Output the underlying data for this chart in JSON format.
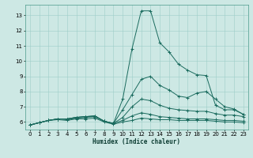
{
  "xlabel": "Humidex (Indice chaleur)",
  "bg_color": "#cde8e4",
  "line_color": "#1a6b5e",
  "xlim": [
    -0.5,
    23.5
  ],
  "ylim": [
    5.5,
    13.7
  ],
  "xticks": [
    0,
    1,
    2,
    3,
    4,
    5,
    6,
    7,
    8,
    9,
    10,
    11,
    12,
    13,
    14,
    15,
    16,
    17,
    18,
    19,
    20,
    21,
    22,
    23
  ],
  "yticks": [
    6,
    7,
    8,
    9,
    10,
    11,
    12,
    13
  ],
  "lines": [
    {
      "x": [
        0,
        1,
        2,
        3,
        4,
        5,
        6,
        7,
        8,
        9,
        10,
        11,
        12,
        13,
        14,
        15,
        16,
        17,
        18,
        19,
        20,
        21,
        22,
        23
      ],
      "y": [
        5.8,
        5.95,
        6.1,
        6.2,
        6.2,
        6.3,
        6.35,
        6.4,
        6.05,
        5.9,
        7.5,
        10.8,
        13.3,
        13.3,
        11.2,
        10.6,
        9.8,
        9.4,
        9.1,
        9.05,
        7.1,
        6.8,
        6.8,
        6.5
      ]
    },
    {
      "x": [
        0,
        1,
        2,
        3,
        4,
        5,
        6,
        7,
        8,
        9,
        10,
        11,
        12,
        13,
        14,
        15,
        16,
        17,
        18,
        19,
        20,
        21,
        22,
        23
      ],
      "y": [
        5.8,
        5.95,
        6.1,
        6.2,
        6.2,
        6.3,
        6.35,
        6.4,
        6.05,
        5.9,
        6.8,
        7.8,
        8.8,
        9.0,
        8.4,
        8.1,
        7.7,
        7.6,
        7.9,
        8.0,
        7.5,
        7.0,
        6.85,
        6.5
      ]
    },
    {
      "x": [
        0,
        1,
        2,
        3,
        4,
        5,
        6,
        7,
        8,
        9,
        10,
        11,
        12,
        13,
        14,
        15,
        16,
        17,
        18,
        19,
        20,
        21,
        22,
        23
      ],
      "y": [
        5.8,
        5.95,
        6.1,
        6.2,
        6.2,
        6.3,
        6.35,
        6.35,
        6.05,
        5.9,
        6.3,
        7.0,
        7.5,
        7.4,
        7.1,
        6.9,
        6.8,
        6.75,
        6.7,
        6.7,
        6.55,
        6.45,
        6.45,
        6.35
      ]
    },
    {
      "x": [
        0,
        1,
        2,
        3,
        4,
        5,
        6,
        7,
        8,
        9,
        10,
        11,
        12,
        13,
        14,
        15,
        16,
        17,
        18,
        19,
        20,
        21,
        22,
        23
      ],
      "y": [
        5.8,
        5.95,
        6.1,
        6.2,
        6.15,
        6.25,
        6.3,
        6.35,
        6.05,
        5.9,
        6.1,
        6.4,
        6.6,
        6.5,
        6.35,
        6.3,
        6.25,
        6.2,
        6.2,
        6.2,
        6.15,
        6.1,
        6.1,
        6.05
      ]
    },
    {
      "x": [
        0,
        1,
        2,
        3,
        4,
        5,
        6,
        7,
        8,
        9,
        10,
        11,
        12,
        13,
        14,
        15,
        16,
        17,
        18,
        19,
        20,
        21,
        22,
        23
      ],
      "y": [
        5.8,
        5.95,
        6.1,
        6.15,
        6.1,
        6.2,
        6.2,
        6.25,
        6.0,
        5.85,
        6.0,
        6.1,
        6.25,
        6.2,
        6.15,
        6.15,
        6.1,
        6.1,
        6.1,
        6.1,
        6.05,
        6.0,
        6.0,
        5.95
      ]
    }
  ]
}
